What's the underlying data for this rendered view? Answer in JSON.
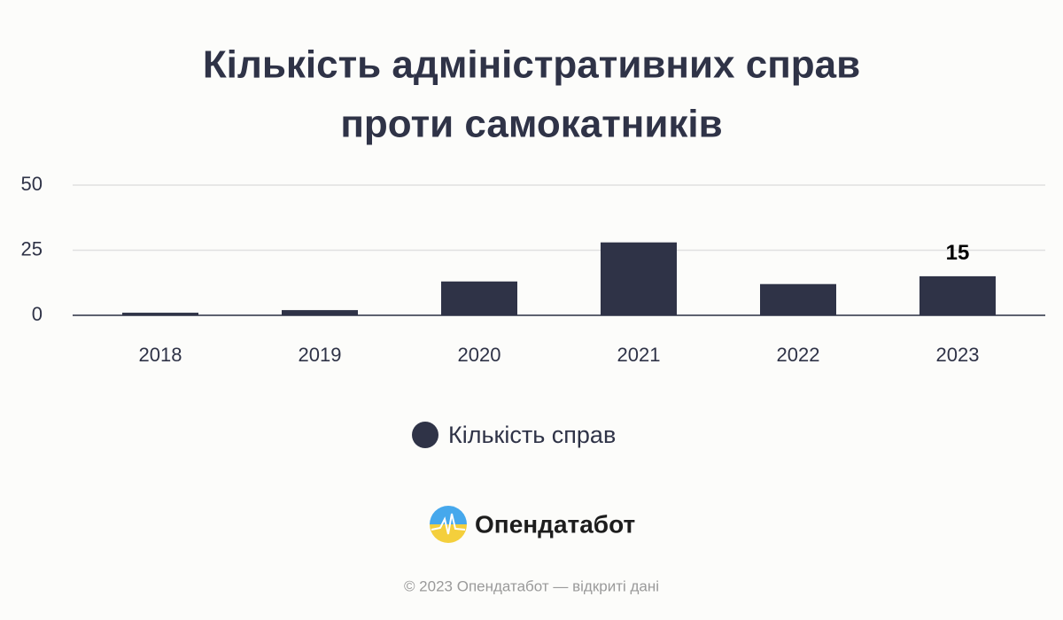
{
  "chart_data": {
    "type": "bar",
    "title": [
      "Кількість адміністративних справ",
      "проти самокатників"
    ],
    "categories": [
      "2018",
      "2019",
      "2020",
      "2021",
      "2022",
      "2023"
    ],
    "series": [
      {
        "name": "Кількість справ",
        "color": "#2f3347",
        "values": [
          1,
          2,
          13,
          28,
          12,
          15
        ],
        "value_labels": [
          null,
          null,
          null,
          null,
          null,
          "15"
        ]
      }
    ],
    "ylim": [
      0,
      50
    ],
    "yticks": [
      0,
      25,
      50
    ],
    "grid": true,
    "legend": "bottom"
  },
  "logo": "Опендатабот",
  "footer": "© 2023 Опендатабот — відкриті дані"
}
